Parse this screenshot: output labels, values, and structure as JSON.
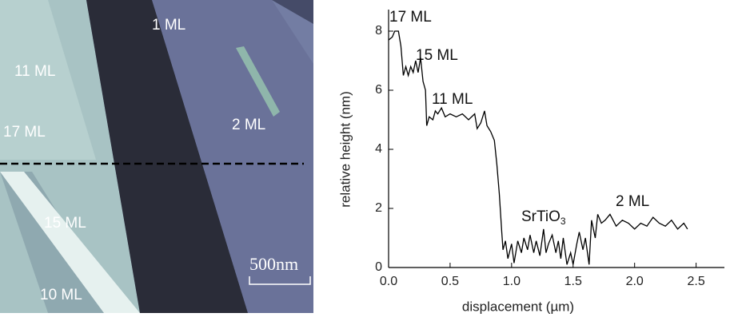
{
  "image": {
    "labels": [
      "1 ML",
      "11 ML",
      "17 ML",
      "2 ML",
      "15 ML",
      "10 ML"
    ],
    "scale_bar": "500nm"
  },
  "chart_data": {
    "type": "line",
    "x_label": "displacement (µm)",
    "y_label": "relative height (nm)",
    "annotations": [
      "17 ML",
      "15 ML",
      "11 ML",
      "2 ML"
    ],
    "substrate_label": {
      "text": "SrTiO",
      "subscript": "3"
    },
    "xlim": [
      0,
      2.73
    ],
    "ylim": [
      0,
      8.73
    ],
    "xticks": [
      {
        "value": 0,
        "label": "0.0"
      },
      0.5,
      {
        "value": 1,
        "label": "1.0"
      },
      1.5,
      {
        "value": 2,
        "label": "2.0"
      },
      2.5
    ],
    "yticks": [
      0,
      2,
      4,
      6,
      8
    ],
    "x": [
      0,
      0.03,
      0.05,
      0.08,
      0.1,
      0.12,
      0.14,
      0.16,
      0.18,
      0.2,
      0.22,
      0.24,
      0.26,
      0.28,
      0.3,
      0.31,
      0.33,
      0.36,
      0.38,
      0.4,
      0.43,
      0.46,
      0.5,
      0.55,
      0.6,
      0.65,
      0.7,
      0.72,
      0.75,
      0.78,
      0.8,
      0.83,
      0.86,
      0.88,
      0.9,
      0.92,
      0.93,
      0.95,
      0.97,
      1.0,
      1.02,
      1.05,
      1.08,
      1.1,
      1.13,
      1.15,
      1.18,
      1.2,
      1.23,
      1.26,
      1.28,
      1.3,
      1.33,
      1.36,
      1.38,
      1.4,
      1.42,
      1.45,
      1.48,
      1.5,
      1.53,
      1.55,
      1.58,
      1.6,
      1.63,
      1.65,
      1.68,
      1.7,
      1.73,
      1.76,
      1.8,
      1.85,
      1.9,
      1.95,
      2.0,
      2.05,
      2.1,
      2.15,
      2.2,
      2.25,
      2.3,
      2.35,
      2.4,
      2.43
    ],
    "series": [
      {
        "color": "#000000",
        "values": [
          7.7,
          7.8,
          8.0,
          8.0,
          7.5,
          6.5,
          6.8,
          6.5,
          6.8,
          6.6,
          7.0,
          6.6,
          7.1,
          6.3,
          6.0,
          4.8,
          5.1,
          5.0,
          5.3,
          5.2,
          5.4,
          5.1,
          5.2,
          5.1,
          5.2,
          5.0,
          5.2,
          4.7,
          4.9,
          5.3,
          4.8,
          4.6,
          4.3,
          3.5,
          2.5,
          1.2,
          0.6,
          0.9,
          0.3,
          0.8,
          0.15,
          0.9,
          0.5,
          1.0,
          0.6,
          1.1,
          0.5,
          0.9,
          0.4,
          1.3,
          0.5,
          0.8,
          1.1,
          0.5,
          0.9,
          0.3,
          1.0,
          0.1,
          0.5,
          0.1,
          0.8,
          1.2,
          0.6,
          1.0,
          0.1,
          1.6,
          1.0,
          1.8,
          1.5,
          1.6,
          1.8,
          1.4,
          1.6,
          1.5,
          1.3,
          1.5,
          1.4,
          1.7,
          1.5,
          1.4,
          1.6,
          1.3,
          1.5,
          1.3
        ]
      }
    ]
  }
}
